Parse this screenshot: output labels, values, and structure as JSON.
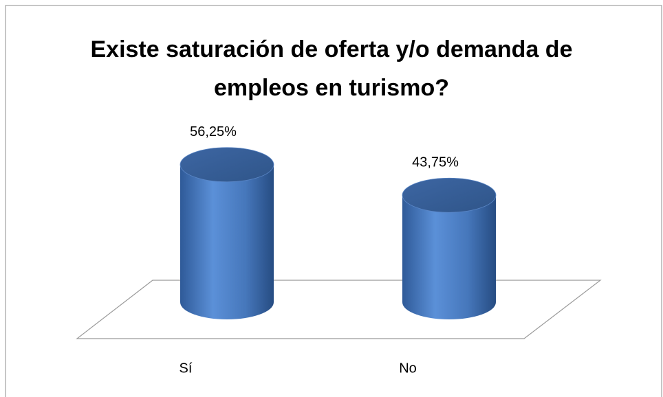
{
  "chart_data": {
    "type": "bar3d-cylinder",
    "title": "Existe saturación de oferta y/o demanda de empleos en turismo?",
    "categories": [
      "Sí",
      "No"
    ],
    "values": [
      56.25,
      43.75
    ],
    "value_labels": [
      "56,25%",
      "43,75%"
    ],
    "color": "#4a7cc0"
  }
}
